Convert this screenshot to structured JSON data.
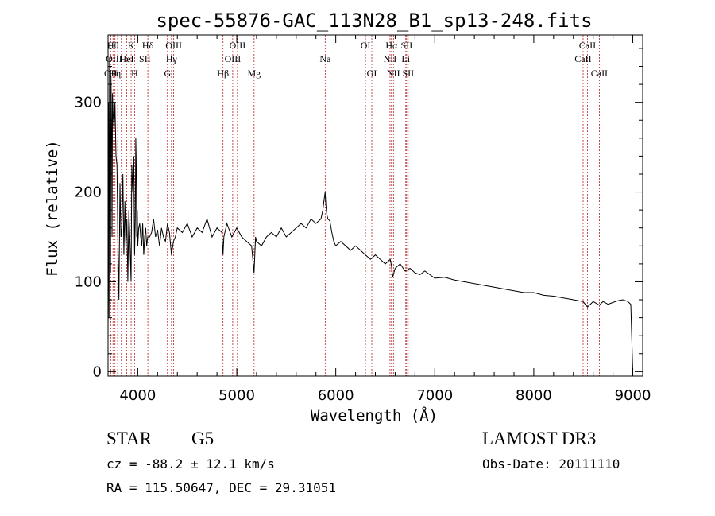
{
  "chart_data": {
    "type": "line",
    "title": "spec-55876-GAC_113N28_B1_sp13-248.fits",
    "xlabel": "Wavelength (Å)",
    "ylabel": "Flux (relative)",
    "xlim": [
      3700,
      9100
    ],
    "ylim": [
      -5,
      375
    ],
    "x_ticks": [
      4000,
      5000,
      6000,
      7000,
      8000,
      9000
    ],
    "y_ticks": [
      0,
      100,
      200,
      300
    ],
    "series": [
      {
        "name": "flux",
        "x": [
          3700,
          3705,
          3710,
          3715,
          3720,
          3725,
          3730,
          3735,
          3740,
          3745,
          3750,
          3760,
          3770,
          3780,
          3790,
          3800,
          3810,
          3820,
          3830,
          3840,
          3850,
          3860,
          3870,
          3880,
          3890,
          3900,
          3910,
          3920,
          3933,
          3940,
          3950,
          3960,
          3968,
          3975,
          3980,
          3985,
          3990,
          3995,
          4000,
          4010,
          4020,
          4030,
          4040,
          4050,
          4060,
          4070,
          4080,
          4090,
          4100,
          4120,
          4140,
          4160,
          4180,
          4200,
          4220,
          4240,
          4260,
          4280,
          4300,
          4320,
          4340,
          4360,
          4380,
          4400,
          4450,
          4500,
          4550,
          4600,
          4650,
          4700,
          4750,
          4800,
          4850,
          4861,
          4870,
          4900,
          4950,
          5000,
          5050,
          5100,
          5150,
          5175,
          5190,
          5200,
          5250,
          5300,
          5350,
          5400,
          5450,
          5500,
          5550,
          5600,
          5650,
          5700,
          5750,
          5800,
          5850,
          5870,
          5880,
          5893,
          5900,
          5910,
          5920,
          5940,
          5960,
          5980,
          6000,
          6050,
          6100,
          6150,
          6200,
          6250,
          6300,
          6350,
          6400,
          6450,
          6500,
          6550,
          6563,
          6575,
          6600,
          6650,
          6700,
          6750,
          6800,
          6850,
          6900,
          6950,
          7000,
          7100,
          7200,
          7300,
          7400,
          7500,
          7600,
          7700,
          7800,
          7900,
          8000,
          8100,
          8200,
          8300,
          8400,
          8498,
          8542,
          8600,
          8662,
          8700,
          8750,
          8800,
          8850,
          8900,
          8950,
          8980,
          9000
        ],
        "values": [
          40,
          300,
          60,
          350,
          270,
          110,
          330,
          280,
          150,
          310,
          290,
          270,
          300,
          240,
          230,
          140,
          80,
          210,
          150,
          160,
          220,
          130,
          190,
          140,
          170,
          100,
          180,
          150,
          100,
          230,
          200,
          240,
          130,
          170,
          260,
          230,
          150,
          180,
          140,
          160,
          165,
          150,
          140,
          165,
          130,
          150,
          160,
          140,
          150,
          150,
          155,
          170,
          150,
          158,
          140,
          160,
          150,
          145,
          165,
          155,
          130,
          145,
          150,
          160,
          155,
          165,
          150,
          160,
          155,
          170,
          150,
          160,
          155,
          130,
          150,
          165,
          150,
          160,
          150,
          145,
          140,
          110,
          150,
          145,
          140,
          150,
          155,
          150,
          160,
          150,
          155,
          160,
          165,
          160,
          170,
          165,
          170,
          180,
          190,
          200,
          185,
          175,
          170,
          168,
          155,
          145,
          140,
          145,
          140,
          135,
          140,
          135,
          130,
          125,
          130,
          125,
          120,
          125,
          118,
          105,
          115,
          120,
          112,
          115,
          110,
          108,
          112,
          108,
          104,
          105,
          102,
          100,
          98,
          96,
          94,
          92,
          90,
          88,
          88,
          85,
          84,
          82,
          80,
          78,
          72,
          78,
          74,
          78,
          75,
          77,
          79,
          80,
          78,
          75,
          0
        ]
      }
    ],
    "lines": [
      {
        "wl": 3727,
        "labels": [
          "OII"
        ],
        "rows": [
          3
        ]
      },
      {
        "wl": 3750,
        "labels": [
          "Hθ"
        ],
        "rows": [
          1
        ]
      },
      {
        "wl": 3760,
        "labels": [
          "OIII"
        ],
        "rows": [
          2
        ]
      },
      {
        "wl": 3770,
        "labels": [
          "Hη"
        ],
        "rows": [
          3
        ]
      },
      {
        "wl": 3797,
        "labels": [],
        "rows": []
      },
      {
        "wl": 3835,
        "labels": [],
        "rows": []
      },
      {
        "wl": 3889,
        "labels": [
          "HeI"
        ],
        "rows": [
          2
        ]
      },
      {
        "wl": 3933,
        "labels": [
          "K"
        ],
        "rows": [
          1
        ]
      },
      {
        "wl": 3968,
        "labels": [
          "H"
        ],
        "rows": [
          3
        ]
      },
      {
        "wl": 4072,
        "labels": [
          "SII"
        ],
        "rows": [
          2
        ]
      },
      {
        "wl": 4102,
        "labels": [
          "Hδ"
        ],
        "rows": [
          1
        ]
      },
      {
        "wl": 4300,
        "labels": [
          "G"
        ],
        "rows": [
          3
        ]
      },
      {
        "wl": 4341,
        "labels": [
          "Hγ"
        ],
        "rows": [
          2
        ]
      },
      {
        "wl": 4363,
        "labels": [
          "OIII"
        ],
        "rows": [
          1
        ]
      },
      {
        "wl": 4861,
        "labels": [
          "Hβ"
        ],
        "rows": [
          3
        ]
      },
      {
        "wl": 4959,
        "labels": [
          "OIII"
        ],
        "rows": [
          2
        ]
      },
      {
        "wl": 5007,
        "labels": [
          "OIII"
        ],
        "rows": [
          1
        ]
      },
      {
        "wl": 5175,
        "labels": [
          "Mg"
        ],
        "rows": [
          3
        ]
      },
      {
        "wl": 5893,
        "labels": [
          "Na"
        ],
        "rows": [
          2
        ]
      },
      {
        "wl": 6300,
        "labels": [
          "OI"
        ],
        "rows": [
          1
        ]
      },
      {
        "wl": 6364,
        "labels": [
          "OI"
        ],
        "rows": [
          3
        ]
      },
      {
        "wl": 6548,
        "labels": [
          "NII"
        ],
        "rows": [
          2
        ]
      },
      {
        "wl": 6563,
        "labels": [
          "Hα"
        ],
        "rows": [
          1
        ]
      },
      {
        "wl": 6583,
        "labels": [
          "NII"
        ],
        "rows": [
          3
        ]
      },
      {
        "wl": 6707,
        "labels": [
          "Li"
        ],
        "rows": [
          2
        ]
      },
      {
        "wl": 6716,
        "labels": [
          "SII"
        ],
        "rows": [
          1
        ]
      },
      {
        "wl": 6731,
        "labels": [
          "SII"
        ],
        "rows": [
          3
        ]
      },
      {
        "wl": 8498,
        "labels": [
          "CaII"
        ],
        "rows": [
          2
        ]
      },
      {
        "wl": 8542,
        "labels": [
          "CaII"
        ],
        "rows": [
          1
        ]
      },
      {
        "wl": 8662,
        "labels": [
          "CaII"
        ],
        "rows": [
          3
        ]
      }
    ]
  },
  "info": {
    "object_class": "STAR",
    "subclass": "G5",
    "redshift": "cz = -88.2 ± 12.1 km/s",
    "coordinates": "RA = 115.50647, DEC =  29.31051",
    "survey": "LAMOST DR3",
    "obs_date": "Obs-Date: 20111110"
  },
  "colors": {
    "axis": "#000000",
    "spectrum": "#000000",
    "line_markers": "#b22222"
  }
}
